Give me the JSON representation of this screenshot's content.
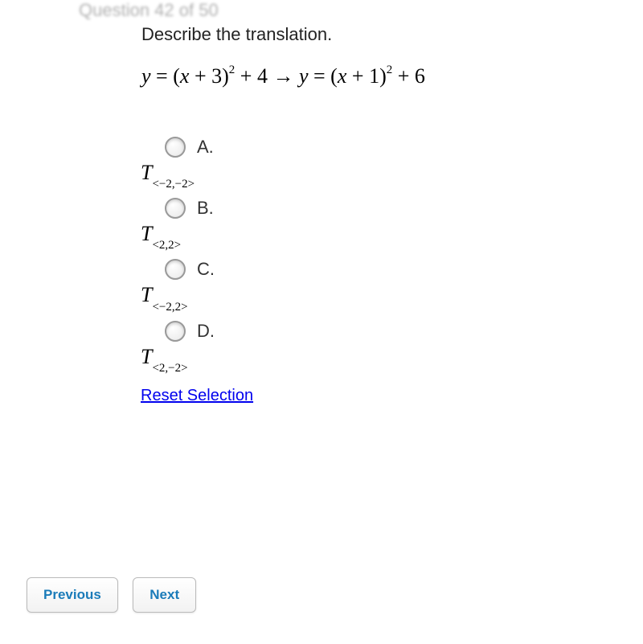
{
  "header": {
    "question_number": "Question 42 of 50"
  },
  "prompt": "Describe the translation.",
  "equation_html": "<span>y</span> <span class=\"op\">=</span> <span class=\"op\">(</span><span>x</span> <span class=\"op\">+</span> <span class=\"op\">3)</span><sup>2</sup> <span class=\"op\">+</span> <span class=\"op\">4</span> <span class=\"op\">→</span> <span>y</span> <span class=\"op\">=</span> <span class=\"op\">(</span><span>x</span> <span class=\"op\">+</span> <span class=\"op\">1)</span><sup>2</sup> <span class=\"op\">+</span> <span class=\"op\">6</span>",
  "options": [
    {
      "letter": "A.",
      "math_html": "T<sub>&lt;−2,−2&gt;</sub>"
    },
    {
      "letter": "B.",
      "math_html": "T<sub>&lt;2,2&gt;</sub>"
    },
    {
      "letter": "C.",
      "math_html": "T<sub>&lt;−2,2&gt;</sub>"
    },
    {
      "letter": "D.",
      "math_html": "T<sub>&lt;2,−2&gt;</sub>"
    }
  ],
  "reset_label": "Reset Selection",
  "nav": {
    "previous": "Previous",
    "next": "Next"
  },
  "style": {
    "background_color": "#ffffff",
    "header_color": "#b0b0b0",
    "text_color": "#333333",
    "link_color": "#0000ee",
    "button_text_color": "#1a7bb9",
    "button_bg_top": "#ffffff",
    "button_bg_bottom": "#f2f2f2",
    "button_border": "#bbbbbb",
    "radio_border": "#999999",
    "font_body": "Arial",
    "font_math": "Times New Roman",
    "prompt_fontsize": 22,
    "equation_fontsize": 26,
    "option_fontsize": 22
  }
}
